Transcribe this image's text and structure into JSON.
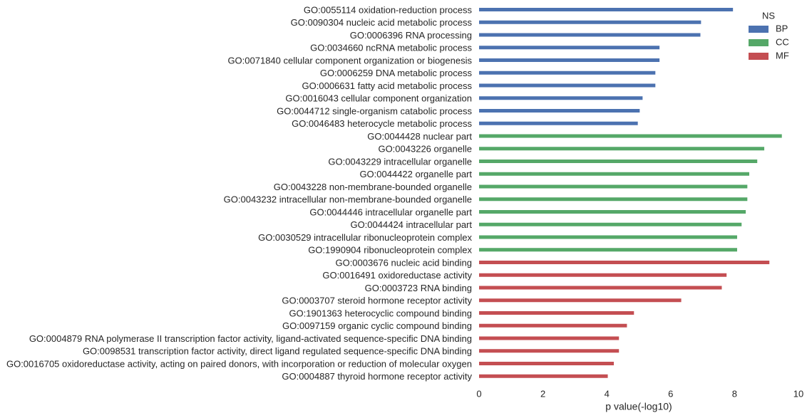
{
  "chart_data": {
    "type": "bar",
    "orientation": "horizontal",
    "xlabel": "p value(-log10)",
    "ylabel": "",
    "xlim": [
      0,
      10
    ],
    "xticks": [
      0,
      2,
      4,
      6,
      8,
      10
    ],
    "grid": false,
    "legend": {
      "title": "NS",
      "placement": "top-right",
      "entries": [
        {
          "name": "BP",
          "color": "#4c72b0"
        },
        {
          "name": "CC",
          "color": "#55a868"
        },
        {
          "name": "MF",
          "color": "#c44e52"
        }
      ]
    },
    "categories": [
      "GO:0055114 oxidation-reduction process",
      "GO:0090304 nucleic acid metabolic process",
      "GO:0006396 RNA processing",
      "GO:0034660 ncRNA metabolic process",
      "GO:0071840 cellular component organization or biogenesis",
      "GO:0006259 DNA metabolic process",
      "GO:0006631 fatty acid metabolic process",
      "GO:0016043 cellular component organization",
      "GO:0044712 single-organism catabolic process",
      "GO:0046483 heterocycle metabolic process",
      "GO:0044428 nuclear part",
      "GO:0043226 organelle",
      "GO:0043229 intracellular organelle",
      "GO:0044422 organelle part",
      "GO:0043228 non-membrane-bounded organelle",
      "GO:0043232 intracellular non-membrane-bounded organelle",
      "GO:0044446 intracellular organelle part",
      "GO:0044424 intracellular part",
      "GO:0030529 intracellular ribonucleoprotein complex",
      "GO:1990904 ribonucleoprotein complex",
      "GO:0003676 nucleic acid binding",
      "GO:0016491 oxidoreductase activity",
      "GO:0003723 RNA binding",
      "GO:0003707 steroid hormone receptor activity",
      "GO:1901363 heterocyclic compound binding",
      "GO:0097159 organic cyclic compound binding",
      "GO:0004879 RNA polymerase II transcription factor activity, ligand-activated sequence-specific DNA binding",
      "GO:0098531 transcription factor activity, direct ligand regulated sequence-specific DNA binding",
      "GO:0016705 oxidoreductase activity, acting on paired donors, with incorporation or reduction of molecular oxygen",
      "GO:0004887 thyroid hormone receptor activity"
    ],
    "ns": [
      "BP",
      "BP",
      "BP",
      "BP",
      "BP",
      "BP",
      "BP",
      "BP",
      "BP",
      "BP",
      "CC",
      "CC",
      "CC",
      "CC",
      "CC",
      "CC",
      "CC",
      "CC",
      "CC",
      "CC",
      "MF",
      "MF",
      "MF",
      "MF",
      "MF",
      "MF",
      "MF",
      "MF",
      "MF",
      "MF"
    ],
    "values": [
      7.95,
      6.95,
      6.93,
      5.65,
      5.65,
      5.52,
      5.52,
      5.12,
      5.03,
      4.97,
      9.48,
      8.93,
      8.71,
      8.46,
      8.4,
      8.4,
      8.35,
      8.22,
      8.08,
      8.08,
      9.09,
      7.75,
      7.6,
      6.33,
      4.85,
      4.63,
      4.38,
      4.38,
      4.22,
      4.03
    ]
  }
}
